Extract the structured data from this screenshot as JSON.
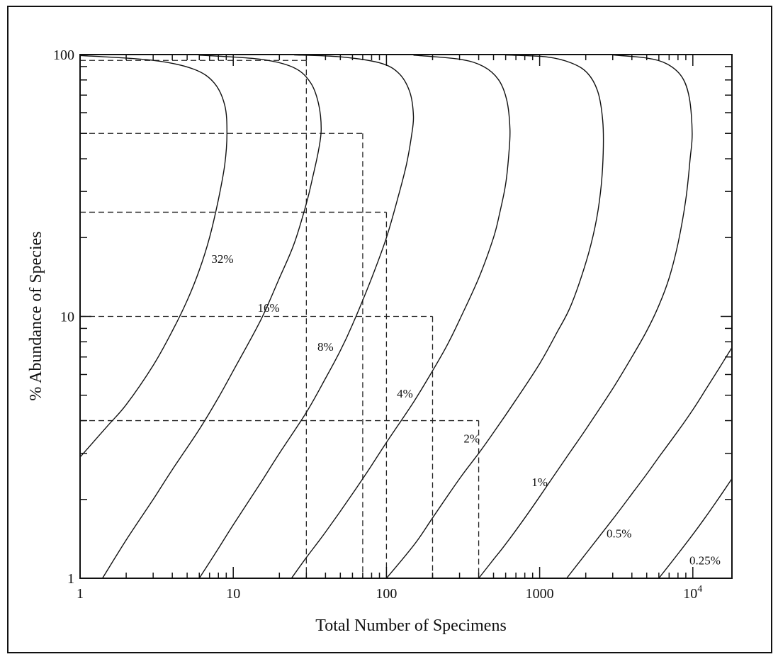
{
  "chart_data": {
    "type": "line",
    "title": "",
    "xlabel": "Total Number of Specimens",
    "ylabel": "% Abundance of Species",
    "x_scale": "log",
    "y_scale": "log",
    "xlim": [
      1,
      18000
    ],
    "ylim": [
      1,
      100
    ],
    "x_ticks": [
      {
        "value": 1,
        "label": "1"
      },
      {
        "value": 10,
        "label": "10"
      },
      {
        "value": 100,
        "label": "100"
      },
      {
        "value": 1000,
        "label": "1000"
      },
      {
        "value": 10000,
        "label": "10",
        "sup": "4"
      }
    ],
    "y_ticks": [
      {
        "value": 1,
        "label": "1"
      },
      {
        "value": 10,
        "label": "10"
      },
      {
        "value": 100,
        "label": "100"
      }
    ],
    "grid": false,
    "legend": "none",
    "series": [
      {
        "name": "32%",
        "label_at": [
          8.5,
          16
        ],
        "points": [
          [
            1,
            2.9
          ],
          [
            1.5,
            3.8
          ],
          [
            2,
            4.6
          ],
          [
            3,
            6.5
          ],
          [
            4,
            8.8
          ],
          [
            5,
            11.5
          ],
          [
            6,
            15
          ],
          [
            7,
            20
          ],
          [
            8,
            28
          ],
          [
            8.8,
            38
          ],
          [
            9.1,
            50
          ],
          [
            8.8,
            64
          ],
          [
            7.5,
            78
          ],
          [
            5.5,
            88
          ],
          [
            3,
            95
          ],
          [
            1,
            99.2
          ]
        ]
      },
      {
        "name": "16%",
        "label_at": [
          17,
          10.4
        ],
        "points": [
          [
            1.4,
            1
          ],
          [
            2,
            1.4
          ],
          [
            3,
            2
          ],
          [
            4,
            2.6
          ],
          [
            6,
            3.7
          ],
          [
            8,
            4.9
          ],
          [
            10,
            6.2
          ],
          [
            15,
            9.6
          ],
          [
            20,
            14
          ],
          [
            25,
            19
          ],
          [
            30,
            27
          ],
          [
            33,
            34
          ],
          [
            36,
            43
          ],
          [
            37.5,
            52
          ],
          [
            36,
            65
          ],
          [
            32,
            78
          ],
          [
            25,
            89
          ],
          [
            15,
            96
          ],
          [
            6,
            99.5
          ]
        ]
      },
      {
        "name": "8%",
        "label_at": [
          40,
          7.4
        ],
        "points": [
          [
            6,
            1
          ],
          [
            8,
            1.3
          ],
          [
            10,
            1.6
          ],
          [
            15,
            2.3
          ],
          [
            20,
            3
          ],
          [
            30,
            4.3
          ],
          [
            40,
            5.8
          ],
          [
            50,
            7.4
          ],
          [
            60,
            9.3
          ],
          [
            80,
            14
          ],
          [
            100,
            20
          ],
          [
            120,
            29
          ],
          [
            135,
            38
          ],
          [
            145,
            48
          ],
          [
            150,
            58
          ],
          [
            142,
            72
          ],
          [
            120,
            85
          ],
          [
            90,
            93
          ],
          [
            50,
            98
          ],
          [
            25,
            99.7
          ]
        ]
      },
      {
        "name": "4%",
        "label_at": [
          132,
          4.9
        ],
        "points": [
          [
            24,
            1
          ],
          [
            30,
            1.2
          ],
          [
            40,
            1.5
          ],
          [
            60,
            2.1
          ],
          [
            80,
            2.7
          ],
          [
            100,
            3.3
          ],
          [
            150,
            4.7
          ],
          [
            200,
            6.2
          ],
          [
            250,
            7.8
          ],
          [
            300,
            9.7
          ],
          [
            400,
            14
          ],
          [
            500,
            20
          ],
          [
            550,
            25
          ],
          [
            600,
            32
          ],
          [
            630,
            42
          ],
          [
            640,
            52
          ],
          [
            610,
            67
          ],
          [
            540,
            80
          ],
          [
            430,
            90
          ],
          [
            300,
            96
          ],
          [
            150,
            99.5
          ]
        ]
      },
      {
        "name": "2%",
        "label_at": [
          360,
          3.3
        ],
        "points": [
          [
            100,
            1
          ],
          [
            130,
            1.2
          ],
          [
            160,
            1.4
          ],
          [
            200,
            1.7
          ],
          [
            300,
            2.4
          ],
          [
            400,
            3
          ],
          [
            500,
            3.6
          ],
          [
            700,
            4.8
          ],
          [
            1000,
            6.6
          ],
          [
            1300,
            8.7
          ],
          [
            1600,
            11
          ],
          [
            2000,
            16
          ],
          [
            2300,
            22
          ],
          [
            2500,
            30
          ],
          [
            2600,
            42
          ],
          [
            2580,
            56
          ],
          [
            2400,
            72
          ],
          [
            2050,
            85
          ],
          [
            1600,
            93
          ],
          [
            1100,
            98
          ],
          [
            600,
            99.6
          ]
        ]
      },
      {
        "name": "1%",
        "label_at": [
          1000,
          2.25
        ],
        "points": [
          [
            400,
            1
          ],
          [
            500,
            1.18
          ],
          [
            600,
            1.35
          ],
          [
            800,
            1.7
          ],
          [
            1000,
            2.05
          ],
          [
            1500,
            2.9
          ],
          [
            2000,
            3.7
          ],
          [
            3000,
            5.3
          ],
          [
            4000,
            7
          ],
          [
            5000,
            8.8
          ],
          [
            6000,
            11
          ],
          [
            7000,
            14
          ],
          [
            8000,
            19
          ],
          [
            9000,
            28
          ],
          [
            9600,
            40
          ],
          [
            9900,
            50
          ],
          [
            9500,
            68
          ],
          [
            8500,
            82
          ],
          [
            6800,
            92
          ],
          [
            5000,
            97
          ],
          [
            3000,
            99.6
          ]
        ]
      },
      {
        "name": "0.5%",
        "label_at": [
          3300,
          1.43
        ],
        "points": [
          [
            1500,
            1
          ],
          [
            2000,
            1.24
          ],
          [
            3000,
            1.68
          ],
          [
            4000,
            2.1
          ],
          [
            5000,
            2.5
          ],
          [
            6000,
            2.9
          ],
          [
            8000,
            3.65
          ],
          [
            10000,
            4.4
          ],
          [
            12000,
            5.2
          ],
          [
            15000,
            6.4
          ],
          [
            18000,
            7.6
          ]
        ]
      },
      {
        "name": "0.25%",
        "label_at": [
          12000,
          1.13
        ],
        "points": [
          [
            6000,
            1
          ],
          [
            8000,
            1.24
          ],
          [
            10000,
            1.47
          ],
          [
            12000,
            1.7
          ],
          [
            15000,
            2.05
          ],
          [
            18000,
            2.4
          ]
        ]
      }
    ],
    "reference_lines": [
      {
        "x": 30,
        "y": 95
      },
      {
        "x": 70,
        "y": 50
      },
      {
        "x": 100,
        "y": 25
      },
      {
        "x": 200,
        "y": 10
      },
      {
        "x": 400,
        "y": 4
      }
    ]
  }
}
